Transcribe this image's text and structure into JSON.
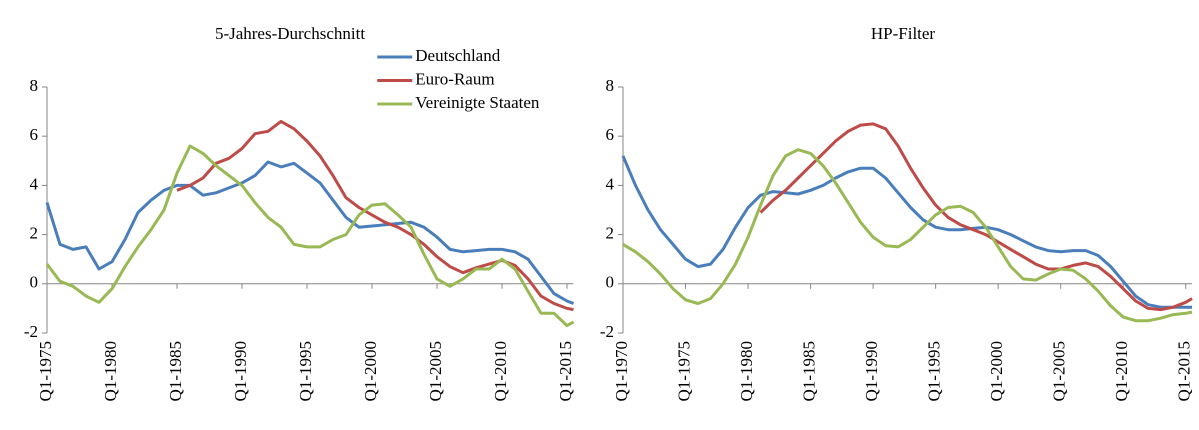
{
  "chart_data": [
    {
      "type": "line",
      "title": "5-Jahres-Durchschnitt",
      "legend": "upper-center",
      "x": [
        1975,
        1976,
        1977,
        1978,
        1979,
        1980,
        1981,
        1982,
        1983,
        1984,
        1985,
        1986,
        1987,
        1988,
        1989,
        1990,
        1991,
        1992,
        1993,
        1994,
        1995,
        1996,
        1997,
        1998,
        1999,
        2000,
        2001,
        2002,
        2003,
        2004,
        2005,
        2006,
        2007,
        2008,
        2009,
        2010,
        2011,
        2012,
        2013,
        2014,
        2015,
        2015.5
      ],
      "xlim": [
        1975,
        2015.5
      ],
      "xticks": [
        {
          "value": 1975,
          "label": "Q1-1975"
        },
        {
          "value": 1980,
          "label": "Q1-1980"
        },
        {
          "value": 1985,
          "label": "Q1-1985"
        },
        {
          "value": 1990,
          "label": "Q1-1990"
        },
        {
          "value": 1995,
          "label": "Q1-1995"
        },
        {
          "value": 2000,
          "label": "Q1-2000"
        },
        {
          "value": 2005,
          "label": "Q1-2005"
        },
        {
          "value": 2010,
          "label": "Q1-2010"
        },
        {
          "value": 2015,
          "label": "Q1-2015"
        }
      ],
      "ylim": [
        -2,
        8
      ],
      "yticks": [
        -2,
        0,
        2,
        4,
        6,
        8
      ],
      "series": [
        {
          "name": "Deutschland",
          "color": "#4a7ebb",
          "values": [
            3.3,
            1.6,
            1.4,
            1.5,
            0.6,
            0.9,
            1.8,
            2.9,
            3.4,
            3.8,
            4.0,
            4.0,
            3.6,
            3.7,
            3.9,
            4.1,
            4.4,
            4.95,
            4.75,
            4.9,
            4.5,
            4.1,
            3.4,
            2.7,
            2.3,
            2.35,
            2.4,
            2.45,
            2.5,
            2.3,
            1.9,
            1.4,
            1.3,
            1.35,
            1.4,
            1.4,
            1.3,
            1.0,
            0.3,
            -0.4,
            -0.7,
            -0.8
          ]
        },
        {
          "name": "Euro-Raum",
          "color": "#be4b48",
          "values": [
            null,
            null,
            null,
            null,
            null,
            null,
            null,
            null,
            null,
            null,
            3.8,
            4.0,
            4.3,
            4.9,
            5.1,
            5.5,
            6.1,
            6.2,
            6.6,
            6.3,
            5.8,
            5.2,
            4.4,
            3.5,
            3.1,
            2.8,
            2.5,
            2.3,
            2.0,
            1.6,
            1.1,
            0.7,
            0.45,
            0.65,
            0.8,
            0.95,
            0.75,
            0.2,
            -0.5,
            -0.8,
            -1.0,
            -1.05
          ]
        },
        {
          "name": "Vereinigte Staaten",
          "color": "#98b954",
          "values": [
            0.8,
            0.1,
            -0.1,
            -0.5,
            -0.75,
            -0.2,
            0.7,
            1.5,
            2.2,
            3.0,
            4.5,
            5.6,
            5.3,
            4.8,
            4.4,
            4.0,
            3.3,
            2.7,
            2.3,
            1.6,
            1.5,
            1.5,
            1.8,
            2.0,
            2.8,
            3.2,
            3.25,
            2.8,
            2.3,
            1.2,
            0.2,
            -0.1,
            0.2,
            0.6,
            0.6,
            1.0,
            0.6,
            -0.3,
            -1.2,
            -1.2,
            -1.7,
            -1.55
          ]
        }
      ]
    },
    {
      "type": "line",
      "title": "HP-Filter",
      "x": [
        1970,
        1971,
        1972,
        1973,
        1974,
        1975,
        1976,
        1977,
        1978,
        1979,
        1980,
        1981,
        1982,
        1983,
        1984,
        1985,
        1986,
        1987,
        1988,
        1989,
        1990,
        1991,
        1992,
        1993,
        1994,
        1995,
        1996,
        1997,
        1998,
        1999,
        2000,
        2001,
        2002,
        2003,
        2004,
        2005,
        2006,
        2007,
        2008,
        2009,
        2010,
        2011,
        2012,
        2013,
        2014,
        2015,
        2015.5
      ],
      "xlim": [
        1970,
        2015.5
      ],
      "xticks": [
        {
          "value": 1970,
          "label": "Q1-1970"
        },
        {
          "value": 1975,
          "label": "Q1-1975"
        },
        {
          "value": 1980,
          "label": "Q1-1980"
        },
        {
          "value": 1985,
          "label": "Q1-1985"
        },
        {
          "value": 1990,
          "label": "Q1-1990"
        },
        {
          "value": 1995,
          "label": "Q1-1995"
        },
        {
          "value": 2000,
          "label": "Q1-2000"
        },
        {
          "value": 2005,
          "label": "Q1-2005"
        },
        {
          "value": 2010,
          "label": "Q1-2010"
        },
        {
          "value": 2015,
          "label": "Q1-2015"
        }
      ],
      "ylim": [
        -2,
        8
      ],
      "yticks": [
        -2,
        0,
        2,
        4,
        6,
        8
      ],
      "series": [
        {
          "color": "#4a7ebb",
          "values": [
            5.2,
            4.0,
            3.0,
            2.2,
            1.6,
            1.0,
            0.7,
            0.8,
            1.4,
            2.3,
            3.1,
            3.6,
            3.75,
            3.7,
            3.65,
            3.8,
            4.0,
            4.3,
            4.55,
            4.7,
            4.7,
            4.3,
            3.7,
            3.1,
            2.6,
            2.3,
            2.2,
            2.2,
            2.25,
            2.3,
            2.2,
            2.0,
            1.75,
            1.5,
            1.35,
            1.3,
            1.35,
            1.35,
            1.15,
            0.7,
            0.1,
            -0.5,
            -0.85,
            -0.95,
            -0.95,
            -0.95,
            -0.95
          ]
        },
        {
          "color": "#be4b48",
          "values": [
            null,
            null,
            null,
            null,
            null,
            null,
            null,
            null,
            null,
            null,
            null,
            2.9,
            3.4,
            3.8,
            4.3,
            4.8,
            5.3,
            5.8,
            6.2,
            6.45,
            6.5,
            6.3,
            5.6,
            4.7,
            3.9,
            3.2,
            2.7,
            2.4,
            2.2,
            2.0,
            1.7,
            1.4,
            1.1,
            0.8,
            0.6,
            0.6,
            0.75,
            0.85,
            0.7,
            0.3,
            -0.2,
            -0.7,
            -1.0,
            -1.05,
            -0.95,
            -0.75,
            -0.6
          ]
        },
        {
          "color": "#98b954",
          "values": [
            1.6,
            1.3,
            0.9,
            0.4,
            -0.2,
            -0.65,
            -0.8,
            -0.6,
            0.0,
            0.8,
            1.9,
            3.2,
            4.4,
            5.2,
            5.45,
            5.3,
            4.8,
            4.1,
            3.3,
            2.5,
            1.9,
            1.55,
            1.5,
            1.8,
            2.3,
            2.8,
            3.1,
            3.15,
            2.9,
            2.3,
            1.5,
            0.7,
            0.2,
            0.15,
            0.4,
            0.6,
            0.55,
            0.2,
            -0.3,
            -0.9,
            -1.35,
            -1.5,
            -1.5,
            -1.4,
            -1.25,
            -1.2,
            -1.15
          ]
        }
      ]
    }
  ]
}
